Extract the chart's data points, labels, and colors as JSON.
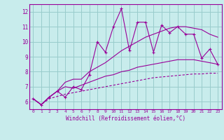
{
  "xlabel": "Windchill (Refroidissement éolien,°C)",
  "bg_color": "#c8ecec",
  "line_color": "#990099",
  "grid_color": "#99cccc",
  "x_data": [
    0,
    1,
    2,
    3,
    4,
    5,
    6,
    7,
    8,
    9,
    10,
    11,
    12,
    13,
    14,
    15,
    16,
    17,
    18,
    19,
    20,
    21,
    22,
    23
  ],
  "y_main": [
    6.2,
    5.8,
    6.3,
    6.7,
    6.3,
    7.0,
    6.8,
    7.8,
    10.0,
    9.3,
    11.0,
    12.2,
    9.4,
    11.3,
    11.3,
    9.3,
    11.1,
    10.6,
    11.0,
    10.5,
    10.5,
    8.9,
    9.5,
    8.5
  ],
  "y_upper": [
    6.2,
    5.8,
    6.3,
    6.7,
    7.3,
    7.5,
    7.5,
    8.0,
    8.3,
    8.6,
    9.0,
    9.4,
    9.7,
    10.0,
    10.3,
    10.5,
    10.7,
    10.9,
    11.0,
    11.0,
    10.9,
    10.8,
    10.5,
    10.3
  ],
  "y_lower": [
    6.2,
    5.8,
    6.3,
    6.7,
    7.0,
    6.9,
    7.1,
    7.3,
    7.5,
    7.7,
    7.8,
    8.0,
    8.1,
    8.3,
    8.4,
    8.5,
    8.6,
    8.7,
    8.8,
    8.8,
    8.8,
    8.7,
    8.6,
    8.5
  ],
  "y_dashed": [
    6.2,
    5.8,
    6.2,
    6.35,
    6.5,
    6.6,
    6.7,
    6.8,
    6.9,
    7.0,
    7.1,
    7.2,
    7.3,
    7.4,
    7.5,
    7.6,
    7.65,
    7.7,
    7.75,
    7.8,
    7.85,
    7.85,
    7.9,
    7.9
  ],
  "ylim": [
    5.5,
    12.5
  ],
  "xlim": [
    -0.5,
    23.5
  ],
  "yticks": [
    6,
    7,
    8,
    9,
    10,
    11,
    12
  ],
  "xticks": [
    0,
    1,
    2,
    3,
    4,
    5,
    6,
    7,
    8,
    9,
    10,
    11,
    12,
    13,
    14,
    15,
    16,
    17,
    18,
    19,
    20,
    21,
    22,
    23
  ]
}
